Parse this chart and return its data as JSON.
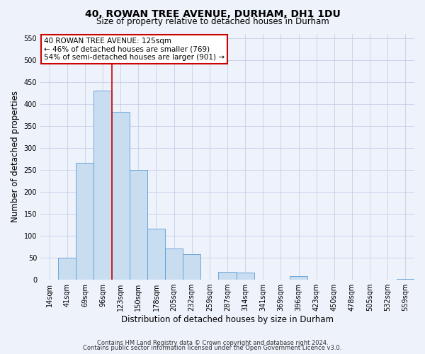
{
  "title": "40, ROWAN TREE AVENUE, DURHAM, DH1 1DU",
  "subtitle": "Size of property relative to detached houses in Durham",
  "xlabel": "Distribution of detached houses by size in Durham",
  "ylabel": "Number of detached properties",
  "bar_labels": [
    "14sqm",
    "41sqm",
    "69sqm",
    "96sqm",
    "123sqm",
    "150sqm",
    "178sqm",
    "205sqm",
    "232sqm",
    "259sqm",
    "287sqm",
    "314sqm",
    "341sqm",
    "369sqm",
    "396sqm",
    "423sqm",
    "450sqm",
    "478sqm",
    "505sqm",
    "532sqm",
    "559sqm"
  ],
  "bar_heights": [
    0,
    50,
    265,
    430,
    382,
    250,
    115,
    70,
    58,
    0,
    17,
    15,
    0,
    0,
    8,
    0,
    0,
    0,
    0,
    0,
    1
  ],
  "bar_color": "#c9ddf0",
  "bar_edge_color": "#5b9bd5",
  "ylim": [
    0,
    560
  ],
  "yticks": [
    0,
    50,
    100,
    150,
    200,
    250,
    300,
    350,
    400,
    450,
    500,
    550
  ],
  "property_label": "40 ROWAN TREE AVENUE: 125sqm",
  "annotation_line1": "← 46% of detached houses are smaller (769)",
  "annotation_line2": "54% of semi-detached houses are larger (901) →",
  "vline_x_index": 4,
  "footer1": "Contains HM Land Registry data © Crown copyright and database right 2024.",
  "footer2": "Contains public sector information licensed under the Open Government Licence v3.0.",
  "bg_color": "#eef2fb",
  "grid_color": "#c5cfe8",
  "box_color": "#cc0000",
  "title_fontsize": 10,
  "subtitle_fontsize": 8.5,
  "axis_label_fontsize": 8.5,
  "tick_fontsize": 7,
  "annotation_fontsize": 7.5,
  "footer_fontsize": 6
}
